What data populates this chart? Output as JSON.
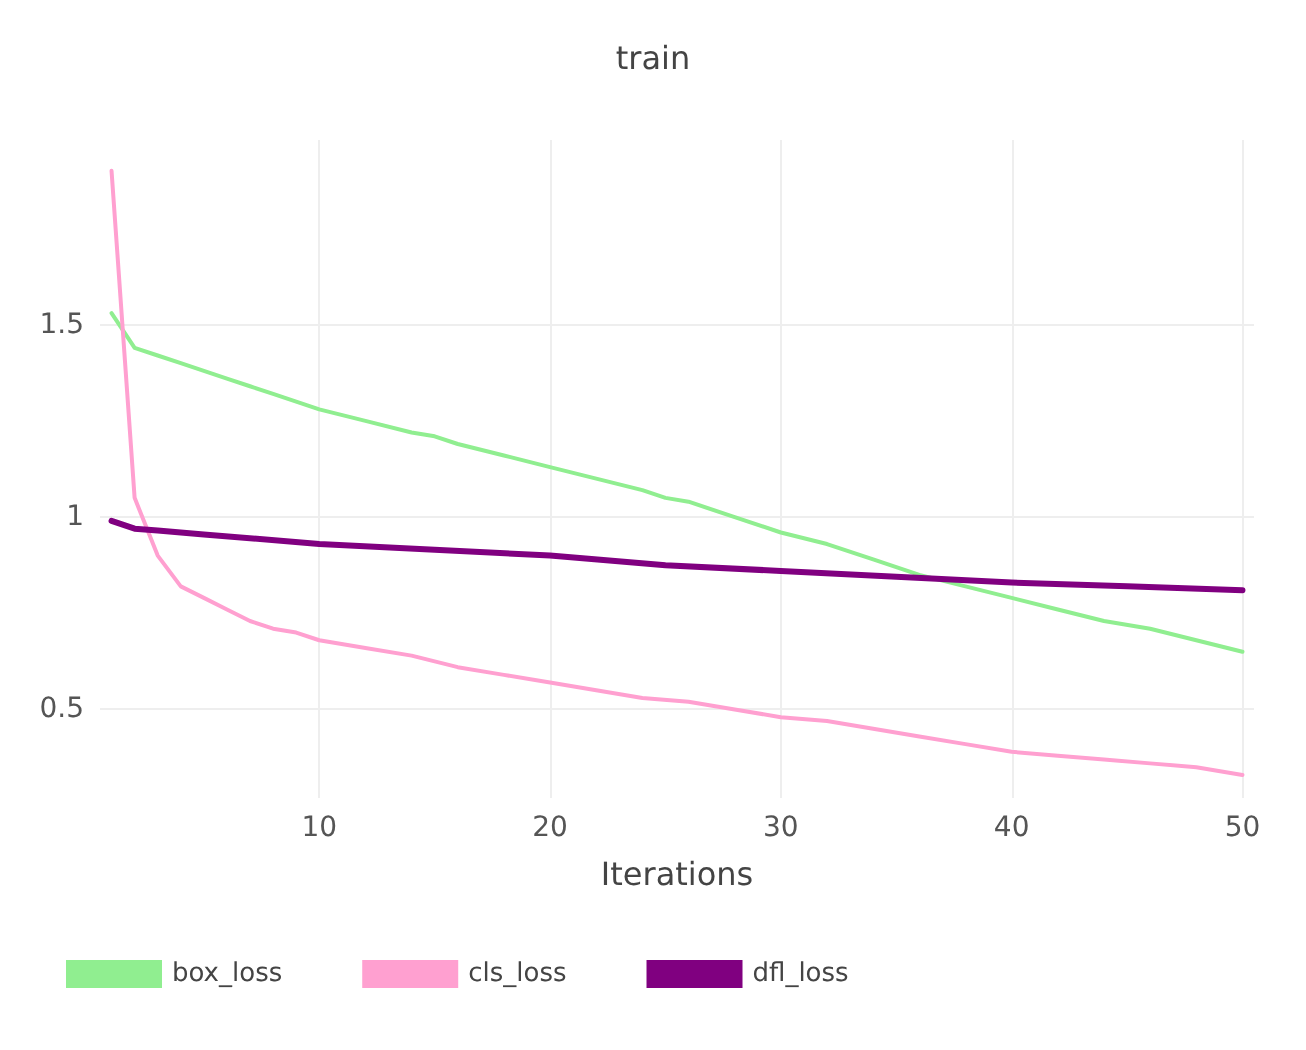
{
  "chart_data": {
    "type": "line",
    "title": "train",
    "xlabel": "Iterations",
    "xlim": [
      0.5,
      50.5
    ],
    "xticks": [
      10,
      20,
      30,
      40,
      50
    ],
    "ylim": [
      0.27,
      1.98
    ],
    "yticks": [
      0.5,
      1,
      1.5
    ],
    "grid": true,
    "legend": "bottom",
    "marker": "none",
    "line_style": "solid",
    "series": [
      {
        "name": "box_loss",
        "color": "#90ee90",
        "x": [
          1,
          2,
          3,
          4,
          5,
          6,
          7,
          8,
          9,
          10,
          12,
          14,
          15,
          16,
          18,
          20,
          22,
          24,
          25,
          26,
          28,
          30,
          32,
          34,
          36,
          38,
          40,
          42,
          44,
          46,
          48,
          50
        ],
        "values": [
          1.53,
          1.44,
          1.42,
          1.4,
          1.38,
          1.36,
          1.34,
          1.32,
          1.3,
          1.28,
          1.25,
          1.22,
          1.21,
          1.19,
          1.16,
          1.13,
          1.1,
          1.07,
          1.05,
          1.04,
          1.0,
          0.96,
          0.93,
          0.89,
          0.85,
          0.82,
          0.79,
          0.76,
          0.73,
          0.71,
          0.68,
          0.65
        ]
      },
      {
        "name": "cls_loss",
        "color": "#ffa0d0",
        "x": [
          1,
          2,
          3,
          4,
          5,
          6,
          7,
          8,
          9,
          10,
          12,
          14,
          16,
          18,
          20,
          22,
          24,
          26,
          28,
          30,
          32,
          34,
          36,
          38,
          40,
          42,
          44,
          46,
          48,
          50
        ],
        "values": [
          1.9,
          1.05,
          0.9,
          0.82,
          0.79,
          0.76,
          0.73,
          0.71,
          0.7,
          0.68,
          0.66,
          0.64,
          0.61,
          0.59,
          0.57,
          0.55,
          0.53,
          0.52,
          0.5,
          0.48,
          0.47,
          0.45,
          0.43,
          0.41,
          0.39,
          0.38,
          0.37,
          0.36,
          0.35,
          0.33
        ]
      },
      {
        "name": "dfl_loss",
        "color": "#800080",
        "x": [
          1,
          2,
          3,
          5,
          10,
          15,
          20,
          25,
          30,
          35,
          40,
          45,
          50
        ],
        "values": [
          0.99,
          0.97,
          0.965,
          0.955,
          0.93,
          0.915,
          0.9,
          0.875,
          0.86,
          0.845,
          0.83,
          0.82,
          0.81
        ]
      }
    ]
  }
}
